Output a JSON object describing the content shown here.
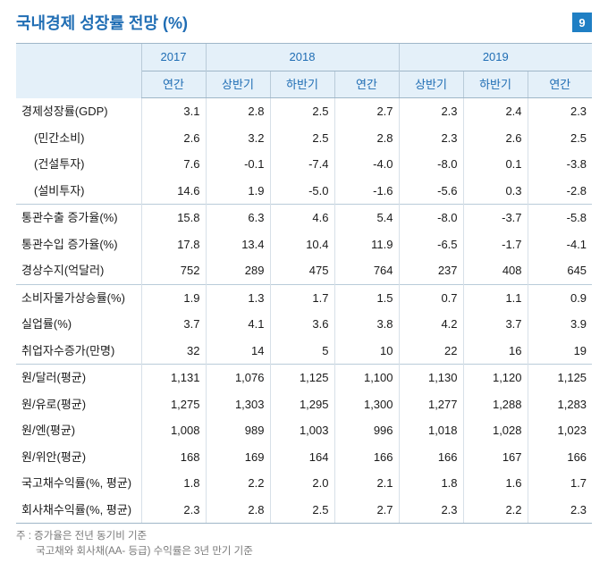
{
  "title": "국내경제 성장률 전망 (%)",
  "badge": "9",
  "colors": {
    "title": "#1f6db4",
    "header_bg": "#e4f0f9",
    "header_text": "#1f6db4",
    "border_strong": "#9fb6c8",
    "border_light": "#d7e0e8",
    "badge_bg": "#1f7fc4",
    "footnote": "#7a7a7a"
  },
  "years": [
    "2017",
    "2018",
    "2019"
  ],
  "sub_headers": [
    "연간",
    "상반기",
    "하반기",
    "연간",
    "상반기",
    "하반기",
    "연간"
  ],
  "groups": [
    {
      "rows": [
        {
          "label": "경제성장률(GDP)",
          "vals": [
            "3.1",
            "2.8",
            "2.5",
            "2.7",
            "2.3",
            "2.4",
            "2.3"
          ]
        },
        {
          "label": "(민간소비)",
          "indent": true,
          "vals": [
            "2.6",
            "3.2",
            "2.5",
            "2.8",
            "2.3",
            "2.6",
            "2.5"
          ]
        },
        {
          "label": "(건설투자)",
          "indent": true,
          "vals": [
            "7.6",
            "-0.1",
            "-7.4",
            "-4.0",
            "-8.0",
            "0.1",
            "-3.8"
          ]
        },
        {
          "label": "(설비투자)",
          "indent": true,
          "vals": [
            "14.6",
            "1.9",
            "-5.0",
            "-1.6",
            "-5.6",
            "0.3",
            "-2.8"
          ]
        }
      ]
    },
    {
      "rows": [
        {
          "label": "통관수출 증가율(%)",
          "vals": [
            "15.8",
            "6.3",
            "4.6",
            "5.4",
            "-8.0",
            "-3.7",
            "-5.8"
          ]
        },
        {
          "label": "통관수입 증가율(%)",
          "vals": [
            "17.8",
            "13.4",
            "10.4",
            "11.9",
            "-6.5",
            "-1.7",
            "-4.1"
          ]
        },
        {
          "label": "경상수지(억달러)",
          "vals": [
            "752",
            "289",
            "475",
            "764",
            "237",
            "408",
            "645"
          ]
        }
      ]
    },
    {
      "rows": [
        {
          "label": "소비자물가상승률(%)",
          "vals": [
            "1.9",
            "1.3",
            "1.7",
            "1.5",
            "0.7",
            "1.1",
            "0.9"
          ]
        },
        {
          "label": "실업률(%)",
          "vals": [
            "3.7",
            "4.1",
            "3.6",
            "3.8",
            "4.2",
            "3.7",
            "3.9"
          ]
        },
        {
          "label": "취업자수증가(만명)",
          "vals": [
            "32",
            "14",
            "5",
            "10",
            "22",
            "16",
            "19"
          ]
        }
      ]
    },
    {
      "rows": [
        {
          "label": "원/달러(평균)",
          "vals": [
            "1,131",
            "1,076",
            "1,125",
            "1,100",
            "1,130",
            "1,120",
            "1,125"
          ]
        },
        {
          "label": "원/유로(평균)",
          "vals": [
            "1,275",
            "1,303",
            "1,295",
            "1,300",
            "1,277",
            "1,288",
            "1,283"
          ]
        },
        {
          "label": "원/엔(평균)",
          "vals": [
            "1,008",
            "989",
            "1,003",
            "996",
            "1,018",
            "1,028",
            "1,023"
          ]
        },
        {
          "label": "원/위안(평균)",
          "vals": [
            "168",
            "169",
            "164",
            "166",
            "166",
            "167",
            "166"
          ]
        },
        {
          "label": "국고채수익률(%, 평균)",
          "vals": [
            "1.8",
            "2.2",
            "2.0",
            "2.1",
            "1.8",
            "1.6",
            "1.7"
          ]
        },
        {
          "label": "회사채수익률(%, 평균)",
          "vals": [
            "2.3",
            "2.8",
            "2.5",
            "2.7",
            "2.3",
            "2.2",
            "2.3"
          ]
        }
      ]
    }
  ],
  "footnote": {
    "line1": "주 : 증가율은 전년 동기비 기준",
    "line2": "국고채와 회사채(AA- 등급) 수익률은 3년 만기 기준"
  }
}
